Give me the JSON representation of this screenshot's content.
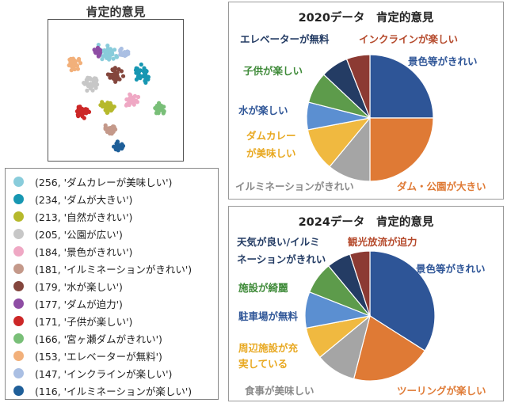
{
  "colors": {
    "navy": "#243c64",
    "darkred": "#8c3a33",
    "blue": "#2e5597",
    "orange": "#df7a35",
    "gray": "#a5a5a5",
    "yellow": "#f0b940",
    "lightblue": "#5b8fd1",
    "green": "#5d9b4b"
  },
  "scatter": {
    "title": "肯定的意見"
  },
  "legend": {
    "items": [
      {
        "text": "(256, 'ダムカレーが美味しい')",
        "color": "#89ccdb"
      },
      {
        "text": "(234, 'ダムが大きい')",
        "color": "#1797b2"
      },
      {
        "text": "(213, '自然がきれい')",
        "color": "#b6b92c"
      },
      {
        "text": "(205, '公園が広い')",
        "color": "#c7c7c7"
      },
      {
        "text": "(184, '景色がきれい')",
        "color": "#efa8c4"
      },
      {
        "text": "(181, 'イルミネーションがきれい')",
        "color": "#c4998a"
      },
      {
        "text": "(179, '水が楽しい')",
        "color": "#84463d"
      },
      {
        "text": "(177, 'ダムが迫力')",
        "color": "#8e4da4"
      },
      {
        "text": "(171, '子供が楽しい')",
        "color": "#cc2727"
      },
      {
        "text": "(166, '宮ヶ瀬ダムがきれい')",
        "color": "#79bf78"
      },
      {
        "text": "(153, 'エレベーターが無料')",
        "color": "#f2b07a"
      },
      {
        "text": "(147, 'インクラインが楽しい')",
        "color": "#aabfe3"
      },
      {
        "text": "(116, 'イルミネーションが楽しい')",
        "color": "#1f5f99"
      }
    ]
  },
  "chart_data": [
    {
      "type": "scatter",
      "title": "肯定的意見",
      "series_from_legend": true
    },
    {
      "type": "pie",
      "title": "2020データ　肯定的意見",
      "slices": [
        {
          "label": "景色等がきれい",
          "value": 25.0,
          "color": "#2e5597"
        },
        {
          "label": "ダム・公園が大きい",
          "value": 25.0,
          "color": "#df7a35"
        },
        {
          "label": "イルミネーションがきれい",
          "value": 11.0,
          "color": "#a5a5a5"
        },
        {
          "label": "ダムカレー\nが美味しい",
          "value": 11.0,
          "color": "#f0b940"
        },
        {
          "label": "水が楽しい",
          "value": 7.0,
          "color": "#5b8fd1"
        },
        {
          "label": "子供が楽しい",
          "value": 8.0,
          "color": "#5d9b4b"
        },
        {
          "label": "エレベーターが無料",
          "value": 7.0,
          "color": "#243c64"
        },
        {
          "label": "インクラインが楽しい",
          "value": 6.0,
          "color": "#8c3a33"
        }
      ]
    },
    {
      "type": "pie",
      "title": "2024データ　肯定的意見",
      "slices": [
        {
          "label": "景色等がきれい",
          "value": 34.0,
          "color": "#2e5597"
        },
        {
          "label": "ツーリングが楽しい",
          "value": 20.0,
          "color": "#df7a35"
        },
        {
          "label": "食事が美味しい",
          "value": 10.0,
          "color": "#a5a5a5"
        },
        {
          "label": "周辺施設が充\n実している",
          "value": 8.0,
          "color": "#f0b940"
        },
        {
          "label": "駐車場が無料",
          "value": 9.0,
          "color": "#5b8fd1"
        },
        {
          "label": "施設が綺麗",
          "value": 8.0,
          "color": "#5d9b4b"
        },
        {
          "label": "天気が良い/イルミ\nネーションがきれい",
          "value": 6.0,
          "color": "#243c64"
        },
        {
          "label": "観光放流が迫力",
          "value": 5.0,
          "color": "#8c3a33"
        }
      ]
    }
  ],
  "pie2020": {
    "title": "2020データ　肯定的意見",
    "labels": {
      "l1": "景色等がきれい",
      "l2": "ダム・公園が大きい",
      "l3": "イルミネーションがきれい",
      "l4a": "ダムカレー",
      "l4b": "が美味しい",
      "l5": "水が楽しい",
      "l6": "子供が楽しい",
      "l7": "エレベーターが無料",
      "l8": "インクラインが楽しい"
    }
  },
  "pie2024": {
    "title": "2024データ　肯定的意見",
    "labels": {
      "l1": "景色等がきれい",
      "l2": "ツーリングが楽しい",
      "l3": "食事が美味しい",
      "l4a": "周辺施設が充",
      "l4b": "実している",
      "l5": "駐車場が無料",
      "l6": "施設が綺麗",
      "l7a": "天気が良い/イルミ",
      "l7b": "ネーションがきれい",
      "l8": "観光放流が迫力"
    }
  }
}
